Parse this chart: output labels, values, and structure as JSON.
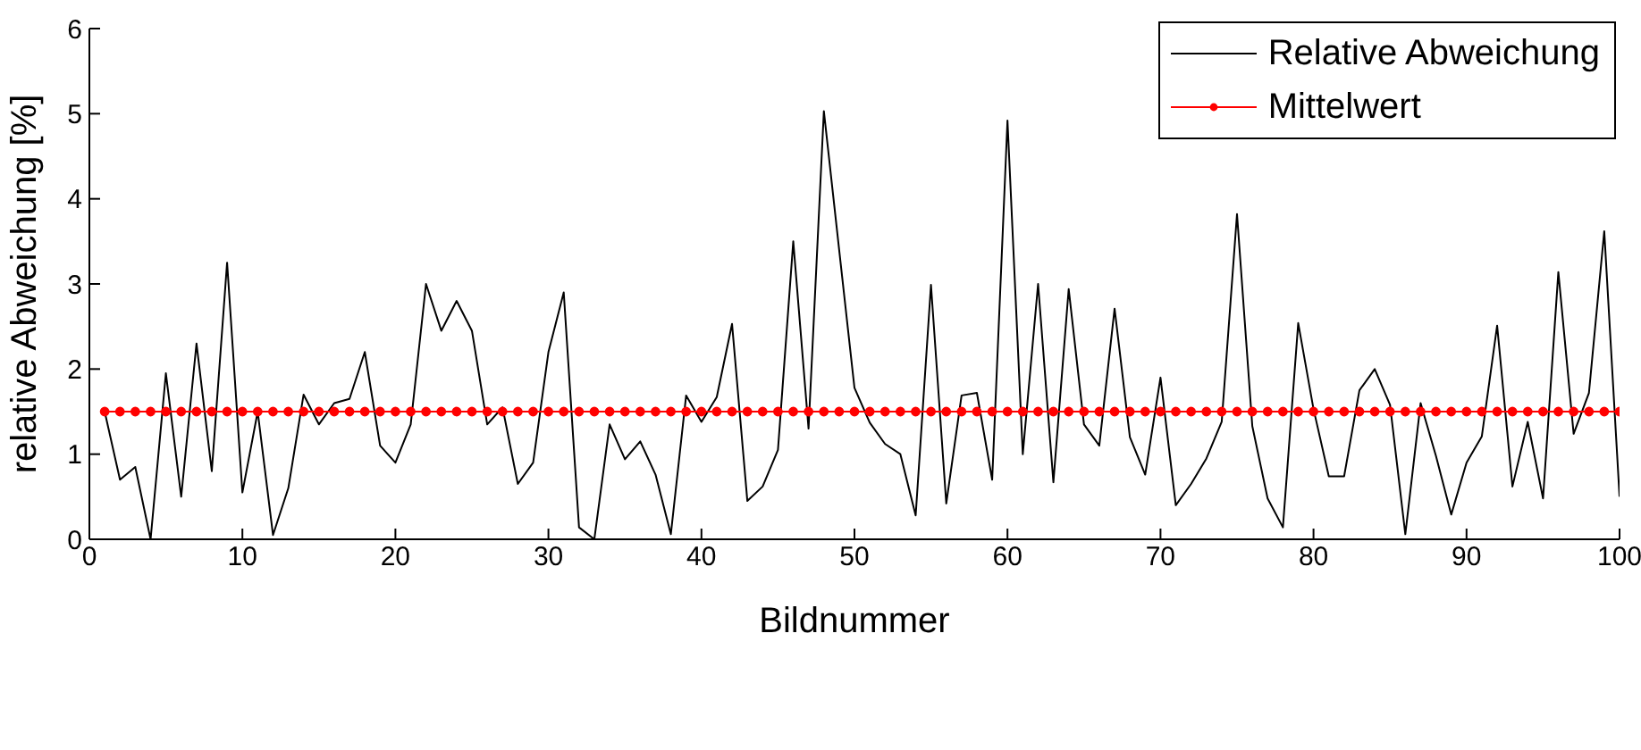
{
  "chart_data": {
    "type": "line",
    "xlabel": "Bildnummer",
    "ylabel": "relative Abweichung [%]",
    "x": [
      1,
      2,
      3,
      4,
      5,
      6,
      7,
      8,
      9,
      10,
      11,
      12,
      13,
      14,
      15,
      16,
      17,
      18,
      19,
      20,
      21,
      22,
      23,
      24,
      25,
      26,
      27,
      28,
      29,
      30,
      31,
      32,
      33,
      34,
      35,
      36,
      37,
      38,
      39,
      40,
      41,
      42,
      43,
      44,
      45,
      46,
      47,
      48,
      49,
      50,
      51,
      52,
      53,
      54,
      55,
      56,
      57,
      58,
      59,
      60,
      61,
      62,
      63,
      64,
      65,
      66,
      67,
      68,
      69,
      70,
      71,
      72,
      73,
      74,
      75,
      76,
      77,
      78,
      79,
      80,
      81,
      82,
      83,
      84,
      85,
      86,
      87,
      88,
      89,
      90,
      91,
      92,
      93,
      94,
      95,
      96,
      97,
      98,
      99,
      100
    ],
    "series": [
      {
        "name": "Relative Abweichung",
        "color": "#000000",
        "marker": "none",
        "values": [
          1.5,
          0.7,
          0.85,
          0,
          1.95,
          0.5,
          2.3,
          0.8,
          3.25,
          0.55,
          1.5,
          0.05,
          0.6,
          1.7,
          1.35,
          1.6,
          1.65,
          2.2,
          1.1,
          0.9,
          1.35,
          3.0,
          2.45,
          2.8,
          2.45,
          1.35,
          1.55,
          0.65,
          0.9,
          2.2,
          2.9,
          0.14,
          0,
          1.35,
          0.94,
          1.15,
          0.76,
          0.06,
          1.69,
          1.38,
          1.67,
          2.53,
          0.45,
          0.62,
          1.05,
          3.5,
          1.3,
          5.03,
          3.4,
          1.78,
          1.37,
          1.12,
          1.0,
          0.28,
          2.99,
          0.42,
          1.69,
          1.72,
          0.7,
          4.92,
          1.0,
          3.0,
          0.67,
          2.94,
          1.35,
          1.1,
          2.71,
          1.2,
          0.76,
          1.9,
          0.4,
          0.65,
          0.95,
          1.38,
          3.82,
          1.33,
          0.48,
          0.14,
          2.54,
          1.53,
          0.74,
          0.74,
          1.75,
          2.0,
          1.58,
          0.06,
          1.6,
          0.98,
          0.29,
          0.9,
          1.21,
          2.51,
          0.62,
          1.38,
          0.48,
          3.14,
          1.24,
          1.72,
          3.62,
          0.5
        ]
      },
      {
        "name": "Mittelwert",
        "color": "#ff0000",
        "marker": "circle",
        "values": [
          1.5,
          1.5,
          1.5,
          1.5,
          1.5,
          1.5,
          1.5,
          1.5,
          1.5,
          1.5,
          1.5,
          1.5,
          1.5,
          1.5,
          1.5,
          1.5,
          1.5,
          1.5,
          1.5,
          1.5,
          1.5,
          1.5,
          1.5,
          1.5,
          1.5,
          1.5,
          1.5,
          1.5,
          1.5,
          1.5,
          1.5,
          1.5,
          1.5,
          1.5,
          1.5,
          1.5,
          1.5,
          1.5,
          1.5,
          1.5,
          1.5,
          1.5,
          1.5,
          1.5,
          1.5,
          1.5,
          1.5,
          1.5,
          1.5,
          1.5,
          1.5,
          1.5,
          1.5,
          1.5,
          1.5,
          1.5,
          1.5,
          1.5,
          1.5,
          1.5,
          1.5,
          1.5,
          1.5,
          1.5,
          1.5,
          1.5,
          1.5,
          1.5,
          1.5,
          1.5,
          1.5,
          1.5,
          1.5,
          1.5,
          1.5,
          1.5,
          1.5,
          1.5,
          1.5,
          1.5,
          1.5,
          1.5,
          1.5,
          1.5,
          1.5,
          1.5,
          1.5,
          1.5,
          1.5,
          1.5,
          1.5,
          1.5,
          1.5,
          1.5,
          1.5,
          1.5,
          1.5,
          1.5,
          1.5,
          1.5
        ]
      }
    ],
    "xlim": [
      0,
      100
    ],
    "xticks": [
      0,
      10,
      20,
      30,
      40,
      50,
      60,
      70,
      80,
      90,
      100
    ],
    "ylim": [
      0,
      6
    ],
    "yticks": [
      0,
      1,
      2,
      3,
      4,
      5,
      6
    ],
    "legend": "top right"
  }
}
